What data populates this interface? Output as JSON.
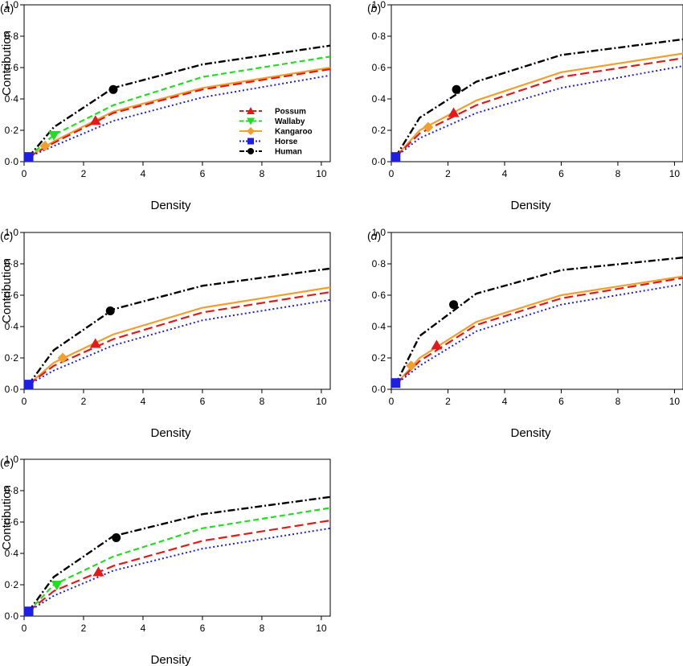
{
  "colors": {
    "Possum": "#e31a1c",
    "Wallaby": "#22dd22",
    "Kangaroo": "#f0a030",
    "Horse": "#1f1fe0",
    "Human": "#000000"
  },
  "legend": {
    "placement": "bottom-right of panel (a)",
    "entries": [
      "Possum",
      "Wallaby",
      "Kangaroo",
      "Horse",
      "Human"
    ]
  },
  "chart_data": [
    {
      "type": "line",
      "panel_label": "(a)",
      "xlabel": "Density",
      "ylabel": "Contribution",
      "xlim": [
        0,
        10.3
      ],
      "ylim": [
        0,
        1.0
      ],
      "xticks": [
        "0",
        "2",
        "4",
        "6",
        "8",
        "10"
      ],
      "yticks": [
        "0·0",
        "0·2",
        "0·4",
        "0·6",
        "0·8",
        "1·0"
      ],
      "x": [
        0.15,
        1,
        3,
        6,
        10.3
      ],
      "series": [
        {
          "name": "Human",
          "values": [
            0.03,
            0.22,
            0.47,
            0.62,
            0.74
          ],
          "marker": {
            "x": 3.0,
            "y": 0.46,
            "shape": "circle"
          }
        },
        {
          "name": "Wallaby",
          "values": [
            0.03,
            0.17,
            0.36,
            0.54,
            0.67
          ],
          "marker": {
            "x": 1.0,
            "y": 0.17,
            "shape": "triangle-down"
          }
        },
        {
          "name": "Kangaroo",
          "values": [
            0.03,
            0.13,
            0.32,
            0.47,
            0.6
          ],
          "marker": {
            "x": 0.7,
            "y": 0.1,
            "shape": "diamond"
          }
        },
        {
          "name": "Possum",
          "values": [
            0.03,
            0.12,
            0.31,
            0.46,
            0.59
          ],
          "marker": {
            "x": 2.4,
            "y": 0.26,
            "shape": "triangle-up"
          }
        },
        {
          "name": "Horse",
          "values": [
            0.03,
            0.1,
            0.26,
            0.41,
            0.55
          ],
          "marker": {
            "x": 0.15,
            "y": 0.03,
            "shape": "square"
          }
        }
      ]
    },
    {
      "type": "line",
      "panel_label": "(b)",
      "xlabel": "Density",
      "ylabel": "",
      "xlim": [
        0,
        10.3
      ],
      "ylim": [
        0,
        1.0
      ],
      "xticks": [
        "0",
        "2",
        "4",
        "6",
        "8",
        "10"
      ],
      "yticks": [
        "0·0",
        "0·2",
        "0·4",
        "0·6",
        "0·8",
        "1·0"
      ],
      "x": [
        0.15,
        1,
        3,
        6,
        10.3
      ],
      "series": [
        {
          "name": "Human",
          "values": [
            0.03,
            0.28,
            0.51,
            0.68,
            0.78
          ],
          "marker": {
            "x": 2.3,
            "y": 0.46,
            "shape": "circle"
          }
        },
        {
          "name": "Kangaroo",
          "values": [
            0.03,
            0.2,
            0.39,
            0.57,
            0.69
          ],
          "marker": {
            "x": 1.3,
            "y": 0.22,
            "shape": "diamond"
          }
        },
        {
          "name": "Possum",
          "values": [
            0.03,
            0.18,
            0.36,
            0.54,
            0.66
          ],
          "marker": {
            "x": 2.2,
            "y": 0.31,
            "shape": "triangle-up"
          }
        },
        {
          "name": "Horse",
          "values": [
            0.03,
            0.15,
            0.31,
            0.47,
            0.61
          ],
          "marker": {
            "x": 0.15,
            "y": 0.03,
            "shape": "square"
          }
        }
      ]
    },
    {
      "type": "line",
      "panel_label": "(c)",
      "xlabel": "Density",
      "ylabel": "Contribution",
      "xlim": [
        0,
        10.3
      ],
      "ylim": [
        0,
        1.0
      ],
      "xticks": [
        "0",
        "2",
        "4",
        "6",
        "8",
        "10"
      ],
      "yticks": [
        "0·0",
        "0·2",
        "0·4",
        "0·6",
        "0·8",
        "1·0"
      ],
      "x": [
        0.15,
        1,
        3,
        6,
        10.3
      ],
      "series": [
        {
          "name": "Human",
          "values": [
            0.03,
            0.25,
            0.51,
            0.66,
            0.77
          ],
          "marker": {
            "x": 2.9,
            "y": 0.5,
            "shape": "circle"
          }
        },
        {
          "name": "Kangaroo",
          "values": [
            0.03,
            0.17,
            0.35,
            0.52,
            0.65
          ],
          "marker": {
            "x": 1.3,
            "y": 0.2,
            "shape": "diamond"
          }
        },
        {
          "name": "Possum",
          "values": [
            0.03,
            0.15,
            0.32,
            0.49,
            0.62
          ],
          "marker": {
            "x": 2.4,
            "y": 0.29,
            "shape": "triangle-up"
          }
        },
        {
          "name": "Horse",
          "values": [
            0.03,
            0.12,
            0.28,
            0.44,
            0.57
          ],
          "marker": {
            "x": 0.15,
            "y": 0.03,
            "shape": "square"
          }
        }
      ]
    },
    {
      "type": "line",
      "panel_label": "(d)",
      "xlabel": "Density",
      "ylabel": "",
      "xlim": [
        0,
        10.3
      ],
      "ylim": [
        0,
        1.0
      ],
      "xticks": [
        "0",
        "2",
        "4",
        "6",
        "8",
        "10"
      ],
      "yticks": [
        "0·0",
        "0·2",
        "0·4",
        "0·6",
        "0·8",
        "1·0"
      ],
      "x": [
        0.15,
        1,
        3,
        6,
        10.3
      ],
      "series": [
        {
          "name": "Human",
          "values": [
            0.03,
            0.34,
            0.61,
            0.76,
            0.84
          ],
          "marker": {
            "x": 2.2,
            "y": 0.54,
            "shape": "circle"
          }
        },
        {
          "name": "Kangaroo",
          "values": [
            0.03,
            0.2,
            0.43,
            0.6,
            0.72
          ],
          "marker": {
            "x": 0.7,
            "y": 0.15,
            "shape": "diamond"
          }
        },
        {
          "name": "Possum",
          "values": [
            0.03,
            0.18,
            0.41,
            0.58,
            0.71
          ],
          "marker": {
            "x": 1.6,
            "y": 0.28,
            "shape": "triangle-up"
          }
        },
        {
          "name": "Horse",
          "values": [
            0.03,
            0.15,
            0.37,
            0.54,
            0.67
          ],
          "marker": {
            "x": 0.15,
            "y": 0.04,
            "shape": "square"
          }
        }
      ]
    },
    {
      "type": "line",
      "panel_label": "(e)",
      "xlabel": "Density",
      "ylabel": "Contribution",
      "xlim": [
        0,
        10.3
      ],
      "ylim": [
        0,
        1.0
      ],
      "xticks": [
        "0",
        "2",
        "4",
        "6",
        "8",
        "10"
      ],
      "yticks": [
        "0·0",
        "0·2",
        "0·4",
        "0·6",
        "0·8",
        "1·0"
      ],
      "x": [
        0.15,
        1,
        3,
        6,
        10.3
      ],
      "series": [
        {
          "name": "Human",
          "values": [
            0.03,
            0.25,
            0.51,
            0.65,
            0.76
          ],
          "marker": {
            "x": 3.1,
            "y": 0.5,
            "shape": "circle"
          }
        },
        {
          "name": "Wallaby",
          "values": [
            0.03,
            0.2,
            0.38,
            0.56,
            0.69
          ],
          "marker": {
            "x": 1.1,
            "y": 0.2,
            "shape": "triangle-down"
          }
        },
        {
          "name": "Possum",
          "values": [
            0.03,
            0.16,
            0.32,
            0.48,
            0.61
          ],
          "marker": {
            "x": 2.5,
            "y": 0.28,
            "shape": "triangle-up"
          }
        },
        {
          "name": "Horse",
          "values": [
            0.03,
            0.13,
            0.29,
            0.43,
            0.56
          ],
          "marker": {
            "x": 0.15,
            "y": 0.03,
            "shape": "square"
          }
        }
      ]
    }
  ]
}
